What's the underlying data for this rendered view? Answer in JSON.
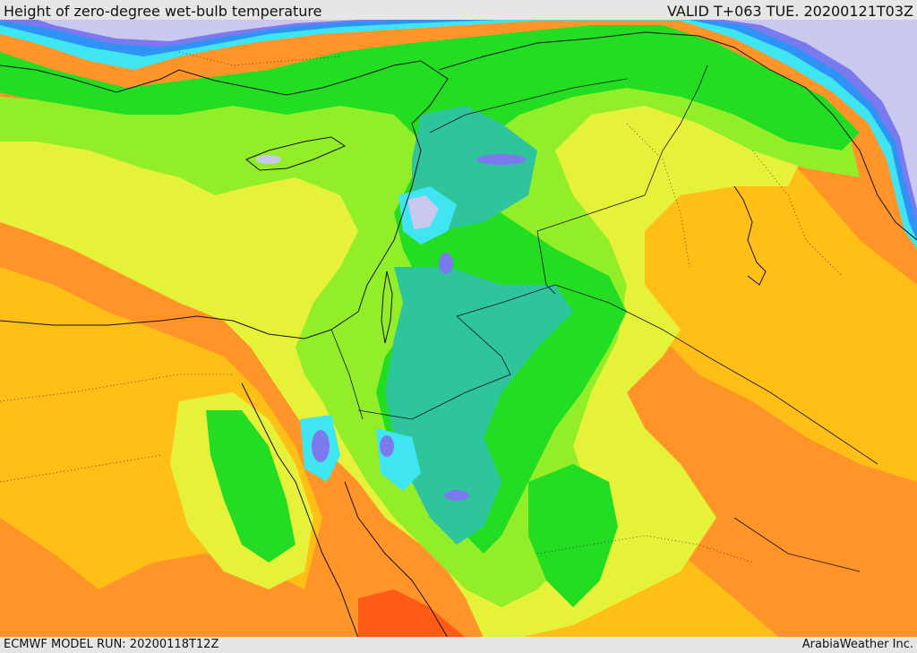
{
  "header": {
    "title": "Height of zero-degree wet-bulb temperature",
    "valid": "VALID T+063 TUE. 20200121T03Z"
  },
  "footer": {
    "model_run": "ECMWF MODEL RUN: 20200118T12Z",
    "credit": "ArabiaWeather Inc."
  },
  "palette": {
    "lowest": "#c9c9f0",
    "very_low": "#7a7aee",
    "low": "#2f93f5",
    "cyan": "#3fe6f2",
    "teal": "#2fc59c",
    "green": "#22dd22",
    "light_green": "#93ee2a",
    "yellow": "#e6f23a",
    "gold": "#ffbf16",
    "orange": "#ff9428",
    "red_orange": "#ff5a16"
  }
}
